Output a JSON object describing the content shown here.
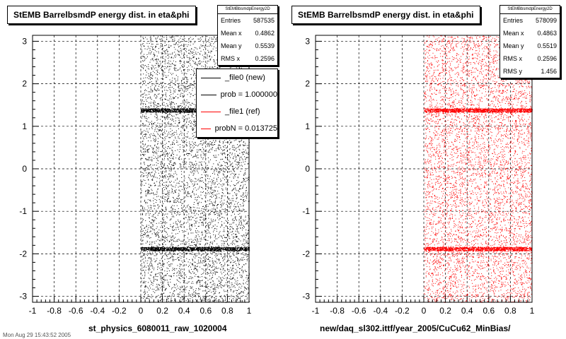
{
  "footer_text": "Mon Aug 29 15:43:52 2005",
  "chart_data": [
    {
      "type": "scatter",
      "title": "StEMB BarrelbsmdP energy dist. in eta&phi",
      "xlabel": "st_physics_6080011_raw_1020004",
      "ylabel": "",
      "xlim": [
        -1,
        1
      ],
      "ylim": [
        -3.14,
        3.14
      ],
      "x_ticks": [
        "-1",
        "-0.8",
        "-0.6",
        "-0.4",
        "-0.2",
        "0",
        "0.2",
        "0.4",
        "0.6",
        "0.8",
        "1"
      ],
      "y_ticks": [
        "-3",
        "-2",
        "-1",
        "0",
        "1",
        "2",
        "3"
      ],
      "grid": true,
      "marker_color": "#000000",
      "filled_x_range": [
        0,
        1
      ],
      "dense_bands_y": [
        1.38,
        -1.88
      ],
      "stats": {
        "name": "StEMBbsmdpEnergy2D",
        "rows": [
          {
            "label": "Entries",
            "value": "587535"
          },
          {
            "label": "Mean x",
            "value": "0.4862"
          },
          {
            "label": "Mean y",
            "value": "0.5539"
          },
          {
            "label": "RMS x",
            "value": "0.2596"
          }
        ]
      },
      "legend": [
        {
          "label": "_file0 (new)",
          "color": "#000000"
        },
        {
          "label": "prob = 1.000000",
          "color": "#000000"
        },
        {
          "label": "_file1 (ref)",
          "color": "#ff0000"
        },
        {
          "label": "probN = 0.013725",
          "color": "#ff0000"
        }
      ]
    },
    {
      "type": "scatter",
      "title": "StEMB BarrelbsmdP energy dist. in eta&phi",
      "xlabel": "new/daq_sl302.ittf/year_2005/CuCu62_MinBias/",
      "ylabel": "",
      "xlim": [
        -1,
        1
      ],
      "ylim": [
        -3.14,
        3.14
      ],
      "x_ticks": [
        "-1",
        "-0.8",
        "-0.6",
        "-0.4",
        "-0.2",
        "0",
        "0.2",
        "0.4",
        "0.6",
        "0.8",
        "1"
      ],
      "y_ticks": [
        "-3",
        "-2",
        "-1",
        "0",
        "1",
        "2",
        "3"
      ],
      "grid": true,
      "marker_color": "#ff0000",
      "filled_x_range": [
        0,
        1
      ],
      "dense_bands_y": [
        1.38,
        -1.88
      ],
      "stats": {
        "name": "StEMBbsmdpEnergy2D",
        "rows": [
          {
            "label": "Entries",
            "value": "578099"
          },
          {
            "label": "Mean x",
            "value": "0.4863"
          },
          {
            "label": "Mean y",
            "value": "0.5519"
          },
          {
            "label": "RMS x",
            "value": "0.2596"
          },
          {
            "label": "RMS y",
            "value": "1.456"
          }
        ]
      }
    }
  ]
}
